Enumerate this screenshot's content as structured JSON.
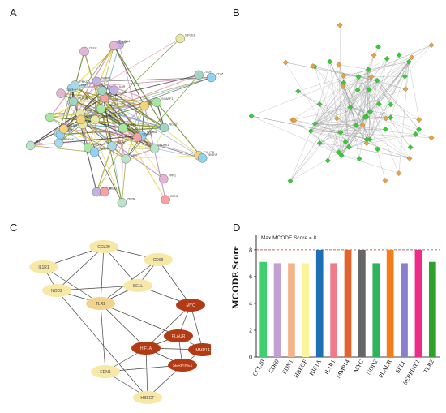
{
  "panels": {
    "a": {
      "label": "A"
    },
    "b": {
      "label": "B"
    },
    "c": {
      "label": "C"
    },
    "d": {
      "label": "D"
    }
  },
  "network_a": {
    "nodes": [
      "PTGHT",
      "PROM1",
      "ITGB8",
      "CALCRL",
      "ACVR2B",
      "RGS16",
      "GPC3",
      "ADM",
      "BEST1",
      "CD63",
      "TIMP1",
      "CD55",
      "PDPK1",
      "KCNMB3",
      "HBEGF",
      "NLRP1",
      "EDN1",
      "ITGAS",
      "PLAUR",
      "FPR1",
      "SCN1",
      "VEGFA",
      "PDPN",
      "GRID2",
      "PRKCB",
      "CA4",
      "CDMPL",
      "TNFRSF12A",
      "NOD2",
      "CLEC",
      "SCARF1",
      "ILR",
      "SELL",
      "IL1RN",
      "MAPK",
      "IL6R",
      "HBA1",
      "MFGE8",
      "CD69",
      "IL2RA",
      "STOML",
      "ARCAP",
      "NPR"
    ],
    "node_colors": [
      "#a8e6a1",
      "#8fd3f4",
      "#b9e4c9",
      "#f4d27a",
      "#a8d8ea",
      "#c3b1e1",
      "#f7a1a1",
      "#e8e8a6",
      "#9ed5c5",
      "#e2b5d6"
    ],
    "edge_colors": [
      "#9aa52a",
      "#5a7d1a",
      "#6fb3c8",
      "#d98cb3",
      "#404040",
      "#e6d34a",
      "#b07fcf"
    ]
  },
  "network_b": {
    "nodes_green": 40,
    "nodes_orange": 22,
    "green_color": "#33cc33",
    "orange_color": "#f0a040",
    "edge_color": "#999999"
  },
  "network_c": {
    "nodes": [
      {
        "name": "CCL20",
        "type": "light"
      },
      {
        "name": "CD69",
        "type": "light"
      },
      {
        "name": "IL1R1",
        "type": "light"
      },
      {
        "name": "NOD2",
        "type": "light"
      },
      {
        "name": "SELL",
        "type": "light"
      },
      {
        "name": "TLR2",
        "type": "medium"
      },
      {
        "name": "MYC",
        "type": "dark"
      },
      {
        "name": "PLAUR",
        "type": "dark"
      },
      {
        "name": "HIF1A",
        "type": "dark"
      },
      {
        "name": "MMP14",
        "type": "dark"
      },
      {
        "name": "SERPINE1",
        "type": "dark"
      },
      {
        "name": "EDN1",
        "type": "light"
      },
      {
        "name": "HBEGF",
        "type": "light"
      }
    ],
    "colors": {
      "light": "#f7e8a8",
      "medium": "#f1d38a",
      "dark": "#b23a14"
    }
  },
  "chart_data": {
    "type": "bar",
    "ylabel": "MCODE Score",
    "categories": [
      "CCL20",
      "CD69",
      "EDN1",
      "HBEGF",
      "HIF1A",
      "IL1R1",
      "MMP14",
      "MYC",
      "NOD2",
      "PLAUR",
      "SELL",
      "SERPINE1",
      "TLR2"
    ],
    "values": [
      7.1,
      7.0,
      7.0,
      7.0,
      8.0,
      7.0,
      8.0,
      8.0,
      7.0,
      8.0,
      7.0,
      8.0,
      7.1
    ],
    "colors": [
      "#3ecf6e",
      "#c3a0d2",
      "#f4b48a",
      "#fbf59a",
      "#1f6fb4",
      "#f07a8a",
      "#e3632c",
      "#666666",
      "#2db35a",
      "#f47d1a",
      "#8a7fcf",
      "#ec2c86",
      "#2fa02a"
    ],
    "ylim": [
      0,
      8.6
    ],
    "yticks": [
      0,
      2,
      4,
      6,
      8
    ],
    "reference_line": {
      "value": 8,
      "label": "Max MCODE Score = 8",
      "color": "#cc2a2a"
    }
  }
}
